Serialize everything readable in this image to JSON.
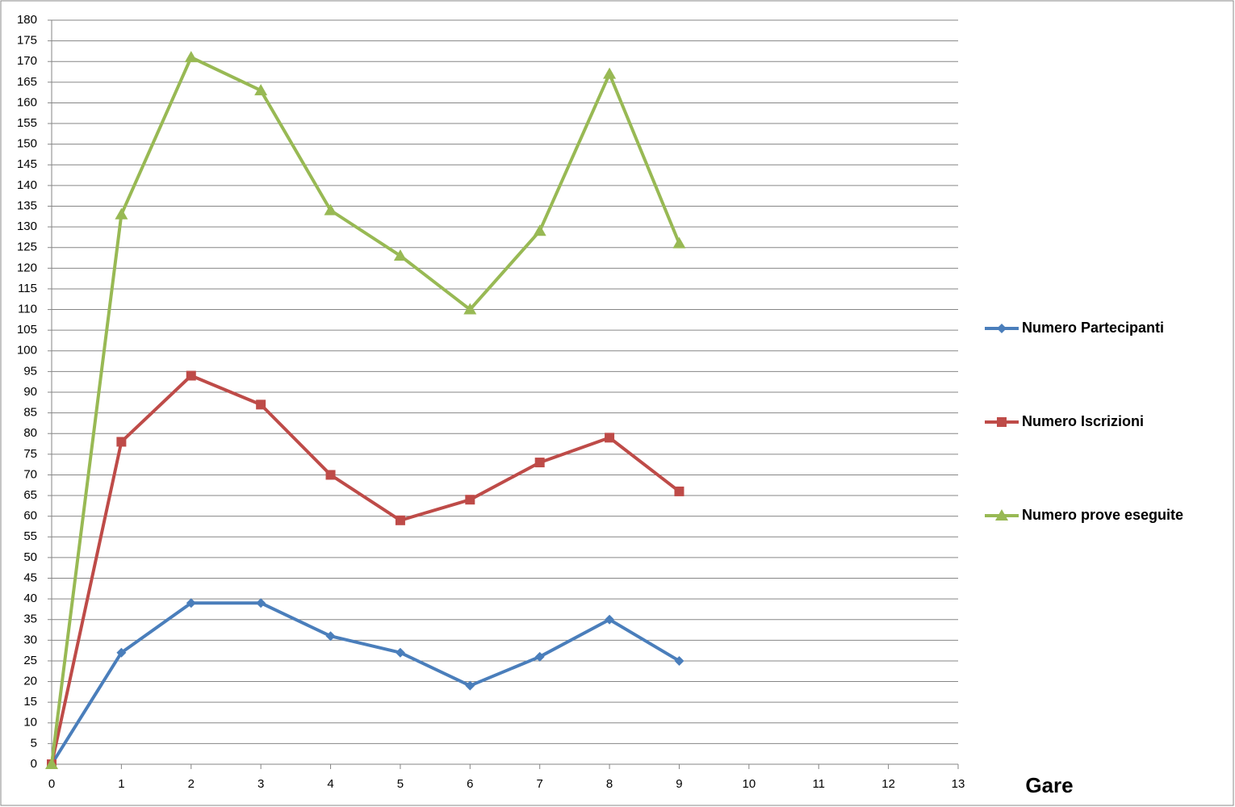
{
  "chart_data": {
    "type": "line",
    "x_label": "Gare",
    "x": [
      0,
      1,
      2,
      3,
      4,
      5,
      6,
      7,
      8,
      9
    ],
    "xlim": [
      0,
      13
    ],
    "xticks": [
      0,
      1,
      2,
      3,
      4,
      5,
      6,
      7,
      8,
      9,
      10,
      11,
      12,
      13
    ],
    "ylim": [
      0,
      180
    ],
    "yticks": [
      0,
      5,
      10,
      15,
      20,
      25,
      30,
      35,
      40,
      45,
      50,
      55,
      60,
      65,
      70,
      75,
      80,
      85,
      90,
      95,
      100,
      105,
      110,
      115,
      120,
      125,
      130,
      135,
      140,
      145,
      150,
      155,
      160,
      165,
      170,
      175,
      180
    ],
    "grid": true,
    "legend": "right",
    "series": [
      {
        "name": "Numero Partecipanti",
        "color": "#4a7ebb",
        "marker": "diamond",
        "values": [
          0,
          27,
          39,
          39,
          31,
          27,
          19,
          26,
          35,
          25
        ]
      },
      {
        "name": "Numero Iscrizioni",
        "color": "#be4b48",
        "marker": "square",
        "values": [
          0,
          78,
          94,
          87,
          70,
          59,
          64,
          73,
          79,
          66
        ]
      },
      {
        "name": "Numero prove eseguite",
        "color": "#98b954",
        "marker": "triangle",
        "values": [
          0,
          133,
          171,
          163,
          134,
          123,
          110,
          129,
          167,
          126
        ]
      }
    ]
  }
}
